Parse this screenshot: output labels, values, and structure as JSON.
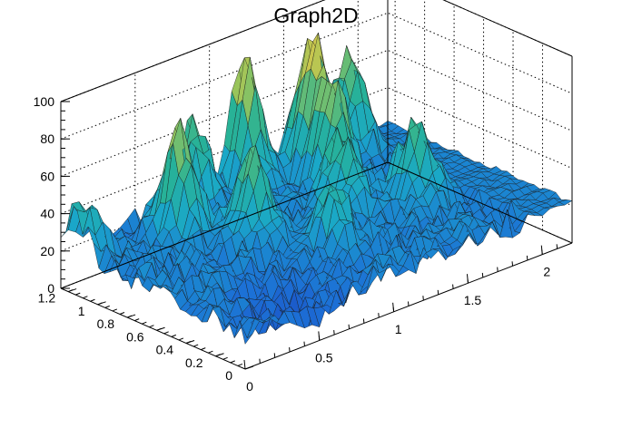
{
  "chart_data": {
    "type": "surface",
    "title": "Graph2D",
    "xlabel": "",
    "ylabel": "",
    "zlabel": "",
    "xlim": [
      0,
      2.2
    ],
    "ylim": [
      0,
      1.25
    ],
    "zlim": [
      0,
      100
    ],
    "x_ticks": [
      "0",
      "0.5",
      "1",
      "1.5",
      "2"
    ],
    "y_ticks": [
      "0",
      "0.2",
      "0.4",
      "0.6",
      "0.8",
      "1",
      "1.2"
    ],
    "z_ticks": [
      "0",
      "20",
      "40",
      "60",
      "80",
      "100"
    ],
    "grid": true,
    "colormap": "viridis-like (blue to yellow)",
    "peaks": [
      {
        "x": 0.05,
        "y": 1.15,
        "z": 50
      },
      {
        "x": 0.55,
        "y": 1.0,
        "z": 77
      },
      {
        "x": 0.85,
        "y": 1.2,
        "z": 65
      },
      {
        "x": 1.2,
        "y": 1.2,
        "z": 85
      },
      {
        "x": 1.55,
        "y": 1.1,
        "z": 92
      },
      {
        "x": 1.85,
        "y": 1.15,
        "z": 72
      },
      {
        "x": 1.5,
        "y": 0.9,
        "z": 70
      },
      {
        "x": 0.8,
        "y": 0.75,
        "z": 65
      },
      {
        "x": 1.35,
        "y": 0.7,
        "z": 60
      },
      {
        "x": 1.7,
        "y": 0.55,
        "z": 62
      },
      {
        "x": 1.05,
        "y": 0.45,
        "z": 50
      }
    ],
    "baseline_level": 22
  }
}
